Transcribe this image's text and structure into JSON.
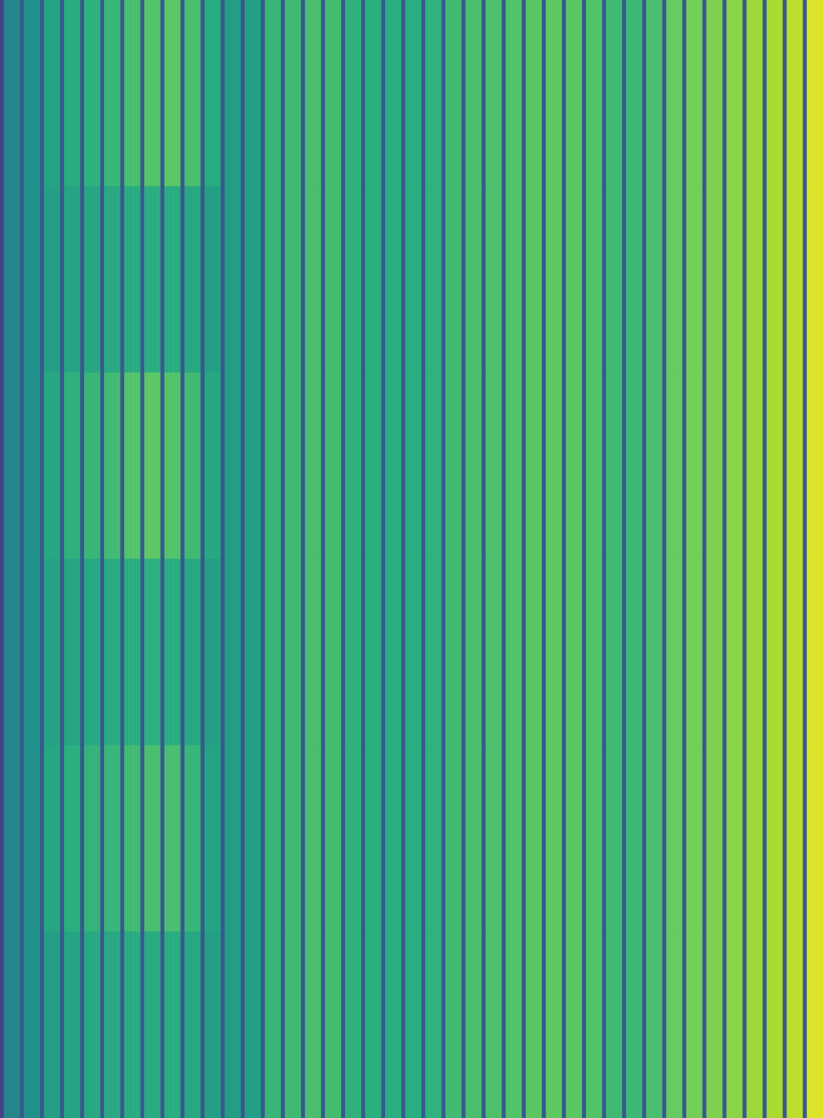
{
  "chart_data": {
    "type": "heatmap",
    "zlim": [
      0,
      1
    ],
    "tick_labels": false,
    "grid": false,
    "cells": [
      [
        0.2,
        0.45,
        0.45,
        0.45,
        0.45,
        0.28,
        0.5,
        0.5,
        0.5,
        0.5,
        0.28,
        0.58,
        0.58,
        0.58,
        0.58,
        0.28,
        0.62,
        0.62,
        0.62,
        0.62,
        0.28,
        0.64,
        0.64,
        0.64,
        0.64,
        0.28,
        0.66,
        0.66,
        0.66,
        0.66,
        0.28,
        0.7,
        0.7,
        0.7,
        0.7,
        0.28,
        0.72,
        0.72,
        0.72,
        0.72,
        0.28,
        0.74,
        0.74,
        0.74,
        0.74,
        0.28,
        0.7,
        0.7,
        0.7,
        0.7,
        0.28,
        0.62,
        0.62,
        0.62,
        0.62,
        0.28,
        0.55,
        0.55,
        0.55,
        0.55,
        0.28,
        0.56,
        0.56,
        0.56,
        0.56,
        0.28,
        0.66,
        0.66,
        0.66,
        0.66,
        0.28,
        0.68,
        0.68,
        0.68,
        0.68,
        0.28,
        0.7,
        0.7,
        0.7,
        0.7,
        0.28,
        0.69,
        0.69,
        0.69,
        0.69,
        0.28,
        0.64,
        0.64,
        0.64,
        0.64,
        0.28,
        0.63,
        0.63,
        0.63,
        0.63,
        0.28,
        0.62,
        0.62,
        0.62,
        0.62,
        0.28,
        0.62,
        0.62,
        0.62,
        0.62,
        0.28,
        0.64,
        0.64,
        0.64,
        0.64,
        0.28,
        0.68,
        0.68,
        0.68,
        0.68,
        0.28,
        0.7,
        0.7,
        0.7,
        0.7,
        0.28,
        0.71,
        0.71,
        0.71,
        0.71,
        0.28,
        0.72,
        0.72,
        0.72,
        0.72,
        0.28,
        0.74,
        0.74,
        0.74,
        0.74,
        0.28,
        0.75,
        0.75,
        0.75,
        0.75,
        0.28,
        0.74,
        0.74,
        0.74,
        0.74,
        0.28,
        0.72,
        0.72,
        0.72,
        0.72,
        0.28,
        0.68,
        0.68,
        0.68,
        0.68,
        0.28,
        0.67,
        0.67,
        0.67,
        0.67,
        0.28,
        0.7,
        0.7,
        0.7,
        0.7,
        0.28,
        0.76,
        0.76,
        0.76,
        0.76,
        0.28,
        0.78,
        0.78,
        0.78,
        0.78,
        0.28,
        0.8,
        0.8,
        0.8,
        0.8,
        0.28,
        0.82,
        0.82,
        0.82,
        0.82,
        0.28,
        0.85,
        0.85,
        0.85,
        0.85,
        0.28,
        0.87,
        0.87,
        0.87,
        0.87,
        0.28,
        0.9,
        0.9,
        0.9,
        0.9,
        0.28,
        0.95,
        0.95,
        0.95,
        0.95
      ],
      [
        0.2,
        0.45,
        0.45,
        0.45,
        0.45,
        0.28,
        0.5,
        0.5,
        0.5,
        0.5,
        0.28,
        0.56,
        0.56,
        0.56,
        0.56,
        0.28,
        0.58,
        0.58,
        0.58,
        0.58,
        0.28,
        0.59,
        0.59,
        0.59,
        0.59,
        0.28,
        0.6,
        0.6,
        0.6,
        0.6,
        0.28,
        0.61,
        0.61,
        0.61,
        0.61,
        0.28,
        0.62,
        0.62,
        0.62,
        0.62,
        0.28,
        0.62,
        0.62,
        0.62,
        0.62,
        0.28,
        0.6,
        0.6,
        0.6,
        0.6,
        0.28,
        0.56,
        0.56,
        0.56,
        0.56,
        0.28,
        0.55,
        0.55,
        0.55,
        0.55,
        0.28,
        0.56,
        0.56,
        0.56,
        0.56,
        0.28,
        0.66,
        0.66,
        0.66,
        0.66,
        0.28,
        0.68,
        0.68,
        0.68,
        0.68,
        0.28,
        0.7,
        0.7,
        0.7,
        0.7,
        0.28,
        0.69,
        0.69,
        0.69,
        0.69,
        0.28,
        0.64,
        0.64,
        0.64,
        0.64,
        0.28,
        0.63,
        0.63,
        0.63,
        0.63,
        0.28,
        0.62,
        0.62,
        0.62,
        0.62,
        0.28,
        0.62,
        0.62,
        0.62,
        0.62,
        0.28,
        0.64,
        0.64,
        0.64,
        0.64,
        0.28,
        0.68,
        0.68,
        0.68,
        0.68,
        0.28,
        0.7,
        0.7,
        0.7,
        0.7,
        0.28,
        0.71,
        0.71,
        0.71,
        0.71,
        0.28,
        0.72,
        0.72,
        0.72,
        0.72,
        0.28,
        0.74,
        0.74,
        0.74,
        0.74,
        0.28,
        0.75,
        0.75,
        0.75,
        0.75,
        0.28,
        0.74,
        0.74,
        0.74,
        0.74,
        0.28,
        0.72,
        0.72,
        0.72,
        0.72,
        0.28,
        0.68,
        0.68,
        0.68,
        0.68,
        0.28,
        0.67,
        0.67,
        0.67,
        0.67,
        0.28,
        0.7,
        0.7,
        0.7,
        0.7,
        0.28,
        0.76,
        0.76,
        0.76,
        0.76,
        0.28,
        0.78,
        0.78,
        0.78,
        0.78,
        0.28,
        0.8,
        0.8,
        0.8,
        0.8,
        0.28,
        0.82,
        0.82,
        0.82,
        0.82,
        0.28,
        0.85,
        0.85,
        0.85,
        0.85,
        0.28,
        0.87,
        0.87,
        0.87,
        0.87,
        0.28,
        0.9,
        0.9,
        0.9,
        0.9,
        0.28,
        0.95,
        0.95,
        0.95,
        0.95
      ],
      [
        0.2,
        0.45,
        0.45,
        0.45,
        0.45,
        0.28,
        0.5,
        0.5,
        0.5,
        0.5,
        0.28,
        0.6,
        0.6,
        0.6,
        0.6,
        0.28,
        0.64,
        0.64,
        0.64,
        0.64,
        0.28,
        0.66,
        0.66,
        0.66,
        0.66,
        0.28,
        0.68,
        0.68,
        0.68,
        0.68,
        0.28,
        0.72,
        0.72,
        0.72,
        0.72,
        0.28,
        0.74,
        0.74,
        0.74,
        0.74,
        0.28,
        0.72,
        0.72,
        0.72,
        0.72,
        0.28,
        0.68,
        0.68,
        0.68,
        0.68,
        0.28,
        0.6,
        0.6,
        0.6,
        0.6,
        0.28,
        0.55,
        0.55,
        0.55,
        0.55,
        0.28,
        0.56,
        0.56,
        0.56,
        0.56,
        0.28,
        0.66,
        0.66,
        0.66,
        0.66,
        0.28,
        0.68,
        0.68,
        0.68,
        0.68,
        0.28,
        0.7,
        0.7,
        0.7,
        0.7,
        0.28,
        0.69,
        0.69,
        0.69,
        0.69,
        0.28,
        0.64,
        0.64,
        0.64,
        0.64,
        0.28,
        0.63,
        0.63,
        0.63,
        0.63,
        0.28,
        0.62,
        0.62,
        0.62,
        0.62,
        0.28,
        0.62,
        0.62,
        0.62,
        0.62,
        0.28,
        0.64,
        0.64,
        0.64,
        0.64,
        0.28,
        0.68,
        0.68,
        0.68,
        0.68,
        0.28,
        0.7,
        0.7,
        0.7,
        0.7,
        0.28,
        0.71,
        0.71,
        0.71,
        0.71,
        0.28,
        0.72,
        0.72,
        0.72,
        0.72,
        0.28,
        0.74,
        0.74,
        0.74,
        0.74,
        0.28,
        0.75,
        0.75,
        0.75,
        0.75,
        0.28,
        0.74,
        0.74,
        0.74,
        0.74,
        0.28,
        0.72,
        0.72,
        0.72,
        0.72,
        0.28,
        0.68,
        0.68,
        0.68,
        0.68,
        0.28,
        0.67,
        0.67,
        0.67,
        0.67,
        0.28,
        0.7,
        0.7,
        0.7,
        0.7,
        0.28,
        0.76,
        0.76,
        0.76,
        0.76,
        0.28,
        0.78,
        0.78,
        0.78,
        0.78,
        0.28,
        0.8,
        0.8,
        0.8,
        0.8,
        0.28,
        0.82,
        0.82,
        0.82,
        0.82,
        0.28,
        0.85,
        0.85,
        0.85,
        0.85,
        0.28,
        0.87,
        0.87,
        0.87,
        0.87,
        0.28,
        0.9,
        0.9,
        0.9,
        0.9,
        0.28,
        0.95,
        0.95,
        0.95,
        0.95
      ],
      [
        0.2,
        0.45,
        0.45,
        0.45,
        0.45,
        0.28,
        0.5,
        0.5,
        0.5,
        0.5,
        0.28,
        0.57,
        0.57,
        0.57,
        0.57,
        0.28,
        0.59,
        0.59,
        0.59,
        0.59,
        0.28,
        0.6,
        0.6,
        0.6,
        0.6,
        0.28,
        0.61,
        0.61,
        0.61,
        0.61,
        0.28,
        0.62,
        0.62,
        0.62,
        0.62,
        0.28,
        0.63,
        0.63,
        0.63,
        0.63,
        0.28,
        0.62,
        0.62,
        0.62,
        0.62,
        0.28,
        0.6,
        0.6,
        0.6,
        0.6,
        0.28,
        0.56,
        0.56,
        0.56,
        0.56,
        0.28,
        0.55,
        0.55,
        0.55,
        0.55,
        0.28,
        0.56,
        0.56,
        0.56,
        0.56,
        0.28,
        0.66,
        0.66,
        0.66,
        0.66,
        0.28,
        0.68,
        0.68,
        0.68,
        0.68,
        0.28,
        0.7,
        0.7,
        0.7,
        0.7,
        0.28,
        0.69,
        0.69,
        0.69,
        0.69,
        0.28,
        0.64,
        0.64,
        0.64,
        0.64,
        0.28,
        0.63,
        0.63,
        0.63,
        0.63,
        0.28,
        0.62,
        0.62,
        0.62,
        0.62,
        0.28,
        0.62,
        0.62,
        0.62,
        0.62,
        0.28,
        0.64,
        0.64,
        0.64,
        0.64,
        0.28,
        0.68,
        0.68,
        0.68,
        0.68,
        0.28,
        0.7,
        0.7,
        0.7,
        0.7,
        0.28,
        0.71,
        0.71,
        0.71,
        0.71,
        0.28,
        0.72,
        0.72,
        0.72,
        0.72,
        0.28,
        0.74,
        0.74,
        0.74,
        0.74,
        0.28,
        0.75,
        0.75,
        0.75,
        0.75,
        0.28,
        0.74,
        0.74,
        0.74,
        0.74,
        0.28,
        0.72,
        0.72,
        0.72,
        0.72,
        0.28,
        0.68,
        0.68,
        0.68,
        0.68,
        0.28,
        0.67,
        0.67,
        0.67,
        0.67,
        0.28,
        0.7,
        0.7,
        0.7,
        0.7,
        0.28,
        0.76,
        0.76,
        0.76,
        0.76,
        0.28,
        0.78,
        0.78,
        0.78,
        0.78,
        0.28,
        0.8,
        0.8,
        0.8,
        0.8,
        0.28,
        0.82,
        0.82,
        0.82,
        0.82,
        0.28,
        0.85,
        0.85,
        0.85,
        0.85,
        0.28,
        0.87,
        0.87,
        0.87,
        0.87,
        0.28,
        0.9,
        0.9,
        0.9,
        0.9,
        0.28,
        0.95,
        0.95,
        0.95,
        0.95
      ],
      [
        0.2,
        0.45,
        0.45,
        0.45,
        0.45,
        0.28,
        0.5,
        0.5,
        0.5,
        0.5,
        0.28,
        0.59,
        0.59,
        0.59,
        0.59,
        0.28,
        0.63,
        0.63,
        0.63,
        0.63,
        0.28,
        0.65,
        0.65,
        0.65,
        0.65,
        0.28,
        0.66,
        0.66,
        0.66,
        0.66,
        0.28,
        0.68,
        0.68,
        0.68,
        0.68,
        0.28,
        0.7,
        0.7,
        0.7,
        0.7,
        0.28,
        0.7,
        0.7,
        0.7,
        0.7,
        0.28,
        0.66,
        0.66,
        0.66,
        0.66,
        0.28,
        0.58,
        0.58,
        0.58,
        0.58,
        0.28,
        0.55,
        0.55,
        0.55,
        0.55,
        0.28,
        0.56,
        0.56,
        0.56,
        0.56,
        0.28,
        0.66,
        0.66,
        0.66,
        0.66,
        0.28,
        0.68,
        0.68,
        0.68,
        0.68,
        0.28,
        0.7,
        0.7,
        0.7,
        0.7,
        0.28,
        0.69,
        0.69,
        0.69,
        0.69,
        0.28,
        0.64,
        0.64,
        0.64,
        0.64,
        0.28,
        0.63,
        0.63,
        0.63,
        0.63,
        0.28,
        0.62,
        0.62,
        0.62,
        0.62,
        0.28,
        0.62,
        0.62,
        0.62,
        0.62,
        0.28,
        0.64,
        0.64,
        0.64,
        0.64,
        0.28,
        0.68,
        0.68,
        0.68,
        0.68,
        0.28,
        0.7,
        0.7,
        0.7,
        0.7,
        0.28,
        0.71,
        0.71,
        0.71,
        0.71,
        0.28,
        0.72,
        0.72,
        0.72,
        0.72,
        0.28,
        0.74,
        0.74,
        0.74,
        0.74,
        0.28,
        0.75,
        0.75,
        0.75,
        0.75,
        0.28,
        0.74,
        0.74,
        0.74,
        0.74,
        0.28,
        0.72,
        0.72,
        0.72,
        0.72,
        0.28,
        0.68,
        0.68,
        0.68,
        0.68,
        0.28,
        0.67,
        0.67,
        0.67,
        0.67,
        0.28,
        0.7,
        0.7,
        0.7,
        0.7,
        0.28,
        0.76,
        0.76,
        0.76,
        0.76,
        0.28,
        0.78,
        0.78,
        0.78,
        0.78,
        0.28,
        0.8,
        0.8,
        0.8,
        0.8,
        0.28,
        0.82,
        0.82,
        0.82,
        0.82,
        0.28,
        0.85,
        0.85,
        0.85,
        0.85,
        0.28,
        0.87,
        0.87,
        0.87,
        0.87,
        0.28,
        0.9,
        0.9,
        0.9,
        0.9,
        0.28,
        0.95,
        0.95,
        0.95,
        0.95
      ],
      [
        0.2,
        0.45,
        0.45,
        0.45,
        0.45,
        0.28,
        0.5,
        0.5,
        0.5,
        0.5,
        0.28,
        0.56,
        0.56,
        0.56,
        0.56,
        0.28,
        0.58,
        0.58,
        0.58,
        0.58,
        0.28,
        0.6,
        0.6,
        0.6,
        0.6,
        0.28,
        0.6,
        0.6,
        0.6,
        0.6,
        0.28,
        0.61,
        0.61,
        0.61,
        0.61,
        0.28,
        0.61,
        0.61,
        0.61,
        0.61,
        0.28,
        0.62,
        0.62,
        0.62,
        0.62,
        0.28,
        0.6,
        0.6,
        0.6,
        0.6,
        0.28,
        0.56,
        0.56,
        0.56,
        0.56,
        0.28,
        0.55,
        0.55,
        0.55,
        0.55,
        0.28,
        0.56,
        0.56,
        0.56,
        0.56,
        0.28,
        0.66,
        0.66,
        0.66,
        0.66,
        0.28,
        0.68,
        0.68,
        0.68,
        0.68,
        0.28,
        0.7,
        0.7,
        0.7,
        0.7,
        0.28,
        0.69,
        0.69,
        0.69,
        0.69,
        0.28,
        0.64,
        0.64,
        0.64,
        0.64,
        0.28,
        0.63,
        0.63,
        0.63,
        0.63,
        0.28,
        0.62,
        0.62,
        0.62,
        0.62,
        0.28,
        0.62,
        0.62,
        0.62,
        0.62,
        0.28,
        0.64,
        0.64,
        0.64,
        0.64,
        0.28,
        0.68,
        0.68,
        0.68,
        0.68,
        0.28,
        0.7,
        0.7,
        0.7,
        0.7,
        0.28,
        0.71,
        0.71,
        0.71,
        0.71,
        0.28,
        0.72,
        0.72,
        0.72,
        0.72,
        0.28,
        0.74,
        0.74,
        0.74,
        0.74,
        0.28,
        0.75,
        0.75,
        0.75,
        0.75,
        0.28,
        0.74,
        0.74,
        0.74,
        0.74,
        0.28,
        0.72,
        0.72,
        0.72,
        0.72,
        0.28,
        0.68,
        0.68,
        0.68,
        0.68,
        0.28,
        0.67,
        0.67,
        0.67,
        0.67,
        0.28,
        0.7,
        0.7,
        0.7,
        0.7,
        0.28,
        0.76,
        0.76,
        0.76,
        0.76,
        0.28,
        0.78,
        0.78,
        0.78,
        0.78,
        0.28,
        0.8,
        0.8,
        0.8,
        0.8,
        0.28,
        0.82,
        0.82,
        0.82,
        0.82,
        0.28,
        0.85,
        0.85,
        0.85,
        0.85,
        0.28,
        0.87,
        0.87,
        0.87,
        0.87,
        0.28,
        0.9,
        0.9,
        0.9,
        0.9,
        0.28,
        0.95,
        0.95,
        0.95,
        0.95
      ]
    ]
  }
}
